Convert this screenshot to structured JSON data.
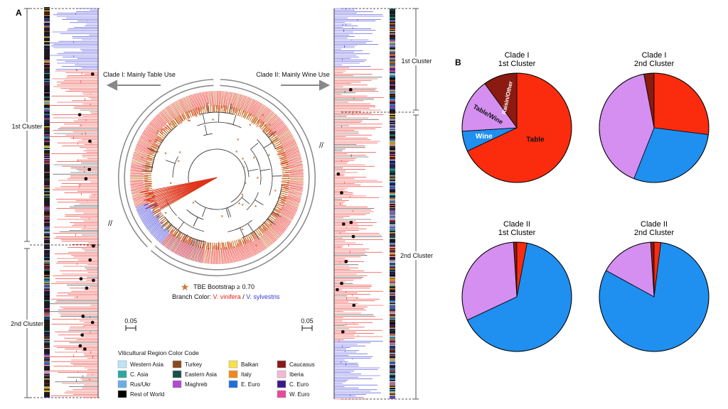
{
  "panels": {
    "a": "A",
    "b": "B"
  },
  "tree": {
    "clade_i": "Clade I: Mainly Table Use",
    "clade_ii": "Clade II: Mainly Wine Use",
    "bootstrap": "TBE Bootstrap ≥ 0.70",
    "branch_prefix": "Branch Color: ",
    "vinifera": "V. vinifera",
    "separator": " / ",
    "sylvestris": "V. sylvestris",
    "scale_left": "0.05",
    "scale_right": "0.05",
    "colors": {
      "vinifera": "#e8231a",
      "sylvestris": "#3a3ad8",
      "bootstrap": "#c8783a",
      "inner": "#c06a1a"
    }
  },
  "side_labels": {
    "left_first": "1st Cluster",
    "left_second": "2nd Cluster",
    "right_first": "1st Cluster",
    "right_second": "2nd Cluster"
  },
  "legend": {
    "title": "Viticultural Region Color Code",
    "items": [
      {
        "label": "Western Asia",
        "color": "#bfe3f5"
      },
      {
        "label": "C. Asia",
        "color": "#2aa7a0"
      },
      {
        "label": "Rus/Ukr",
        "color": "#6aaee8"
      },
      {
        "label": "Rest of World",
        "color": "#000000"
      },
      {
        "label": "Turkey",
        "color": "#8a4a1e"
      },
      {
        "label": "Eastern Asia",
        "color": "#17504a"
      },
      {
        "label": "Maghreb",
        "color": "#b04ad0"
      },
      {
        "label": "Balkan",
        "color": "#f4e24a"
      },
      {
        "label": "Italy",
        "color": "#f08a1a"
      },
      {
        "label": "E. Euro",
        "color": "#1f6fd8"
      },
      {
        "label": "Caucasus",
        "color": "#8a1a1a"
      },
      {
        "label": "Iberia",
        "color": "#f4b8d4"
      },
      {
        "label": "C. Euro",
        "color": "#3a1a8a"
      },
      {
        "label": "W. Euro",
        "color": "#e84a9a"
      }
    ]
  },
  "chart_data": [
    {
      "type": "pie",
      "title": "Clade I\n1st Cluster",
      "categories": [
        "Table",
        "Wine",
        "Table/Wine",
        "Raisin/Other"
      ],
      "values": [
        68,
        6,
        16,
        10
      ],
      "colors": [
        "#fb2c0e",
        "#1f8ff0",
        "#d48ff0",
        "#8b1a10"
      ],
      "slice_labels": [
        "Table",
        "Wine",
        "Table/Wine",
        "Raisin/Other"
      ]
    },
    {
      "type": "pie",
      "title": "Clade I\n2nd Cluster",
      "categories": [
        "Table",
        "Wine",
        "Table/Wine",
        "Raisin/Other"
      ],
      "values": [
        27,
        29,
        41,
        3
      ],
      "colors": [
        "#fb2c0e",
        "#1f8ff0",
        "#d48ff0",
        "#8b1a10"
      ]
    },
    {
      "type": "pie",
      "title": "Clade II\n1st Cluster",
      "categories": [
        "Table",
        "Wine",
        "Table/Wine",
        "Raisin/Other"
      ],
      "values": [
        3,
        65,
        31,
        1
      ],
      "colors": [
        "#fb2c0e",
        "#1f8ff0",
        "#d48ff0",
        "#8b1a10"
      ]
    },
    {
      "type": "pie",
      "title": "Clade II\n2nd Cluster",
      "categories": [
        "Table",
        "Wine",
        "Table/Wine",
        "Raisin/Other"
      ],
      "values": [
        2,
        81,
        16,
        1
      ],
      "colors": [
        "#fb2c0e",
        "#1f8ff0",
        "#d48ff0",
        "#8b1a10"
      ]
    }
  ]
}
